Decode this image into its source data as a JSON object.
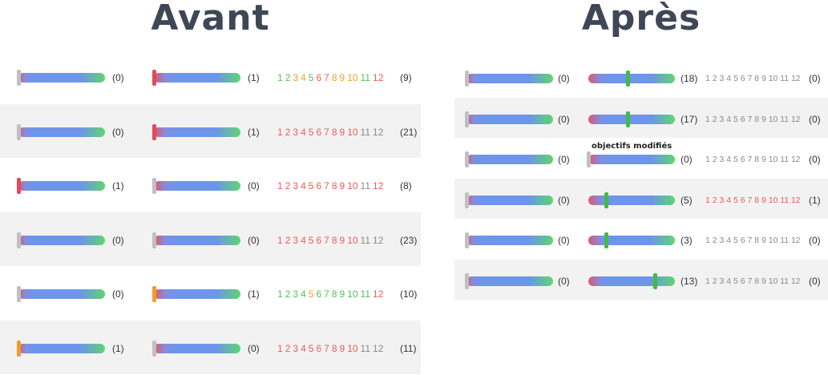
{
  "avant": {
    "title": "Avant",
    "rows": [
      {
        "s1": {
          "count": "(0)",
          "handle": 0.0,
          "handle_color": "gray"
        },
        "s2": {
          "count": "(1)",
          "handle": 0.0,
          "handle_color": "red"
        },
        "goals": [
          {
            "n": "1",
            "c": "green"
          },
          {
            "n": "2",
            "c": "green"
          },
          {
            "n": "3",
            "c": "orange"
          },
          {
            "n": "4",
            "c": "orange"
          },
          {
            "n": "5",
            "c": "green"
          },
          {
            "n": "6",
            "c": "red"
          },
          {
            "n": "7",
            "c": "red"
          },
          {
            "n": "8",
            "c": "orange"
          },
          {
            "n": "9",
            "c": "orange"
          },
          {
            "n": "10",
            "c": "orange"
          },
          {
            "n": "11",
            "c": "green"
          },
          {
            "n": "12",
            "c": "red"
          }
        ],
        "total": "(9)"
      },
      {
        "s1": {
          "count": "(0)",
          "handle": 0.0,
          "handle_color": "gray"
        },
        "s2": {
          "count": "(1)",
          "handle": 0.0,
          "handle_color": "red"
        },
        "goals": [
          {
            "n": "1",
            "c": "red"
          },
          {
            "n": "2",
            "c": "red"
          },
          {
            "n": "3",
            "c": "red"
          },
          {
            "n": "4",
            "c": "red"
          },
          {
            "n": "5",
            "c": "red"
          },
          {
            "n": "6",
            "c": "red"
          },
          {
            "n": "7",
            "c": "red"
          },
          {
            "n": "8",
            "c": "red"
          },
          {
            "n": "9",
            "c": "red"
          },
          {
            "n": "10",
            "c": "red"
          },
          {
            "n": "11",
            "c": "gray"
          },
          {
            "n": "12",
            "c": "gray"
          }
        ],
        "total": "(21)"
      },
      {
        "s1": {
          "count": "(1)",
          "handle": 0.0,
          "handle_color": "red"
        },
        "s2": {
          "count": "(0)",
          "handle": 0.0,
          "handle_color": "gray"
        },
        "goals": [
          {
            "n": "1",
            "c": "red"
          },
          {
            "n": "2",
            "c": "red"
          },
          {
            "n": "3",
            "c": "red"
          },
          {
            "n": "4",
            "c": "red"
          },
          {
            "n": "5",
            "c": "red"
          },
          {
            "n": "6",
            "c": "red"
          },
          {
            "n": "7",
            "c": "red"
          },
          {
            "n": "8",
            "c": "red"
          },
          {
            "n": "9",
            "c": "red"
          },
          {
            "n": "10",
            "c": "red"
          },
          {
            "n": "11",
            "c": "gray"
          },
          {
            "n": "12",
            "c": "red"
          }
        ],
        "total": "(8)"
      },
      {
        "s1": {
          "count": "(0)",
          "handle": 0.0,
          "handle_color": "gray"
        },
        "s2": {
          "count": "(0)",
          "handle": 0.0,
          "handle_color": "gray"
        },
        "goals": [
          {
            "n": "1",
            "c": "red"
          },
          {
            "n": "2",
            "c": "red"
          },
          {
            "n": "3",
            "c": "red"
          },
          {
            "n": "4",
            "c": "red"
          },
          {
            "n": "5",
            "c": "red"
          },
          {
            "n": "6",
            "c": "red"
          },
          {
            "n": "7",
            "c": "red"
          },
          {
            "n": "8",
            "c": "red"
          },
          {
            "n": "9",
            "c": "red"
          },
          {
            "n": "10",
            "c": "red"
          },
          {
            "n": "11",
            "c": "gray"
          },
          {
            "n": "12",
            "c": "gray"
          }
        ],
        "total": "(23)"
      },
      {
        "s1": {
          "count": "(0)",
          "handle": 0.0,
          "handle_color": "gray"
        },
        "s2": {
          "count": "(1)",
          "handle": 0.0,
          "handle_color": "orange"
        },
        "goals": [
          {
            "n": "1",
            "c": "green"
          },
          {
            "n": "2",
            "c": "green"
          },
          {
            "n": "3",
            "c": "green"
          },
          {
            "n": "4",
            "c": "green"
          },
          {
            "n": "5",
            "c": "orange"
          },
          {
            "n": "6",
            "c": "green"
          },
          {
            "n": "7",
            "c": "green"
          },
          {
            "n": "8",
            "c": "green"
          },
          {
            "n": "9",
            "c": "green"
          },
          {
            "n": "10",
            "c": "green"
          },
          {
            "n": "11",
            "c": "green"
          },
          {
            "n": "12",
            "c": "red"
          }
        ],
        "total": "(10)"
      },
      {
        "s1": {
          "count": "(1)",
          "handle": 0.0,
          "handle_color": "orange"
        },
        "s2": {
          "count": "(0)",
          "handle": 0.0,
          "handle_color": "gray"
        },
        "goals": [
          {
            "n": "1",
            "c": "red"
          },
          {
            "n": "2",
            "c": "red"
          },
          {
            "n": "3",
            "c": "red"
          },
          {
            "n": "4",
            "c": "red"
          },
          {
            "n": "5",
            "c": "red"
          },
          {
            "n": "6",
            "c": "red"
          },
          {
            "n": "7",
            "c": "red"
          },
          {
            "n": "8",
            "c": "red"
          },
          {
            "n": "9",
            "c": "red"
          },
          {
            "n": "10",
            "c": "red"
          },
          {
            "n": "11",
            "c": "gray"
          },
          {
            "n": "12",
            "c": "gray"
          }
        ],
        "total": "(11)"
      }
    ]
  },
  "apres": {
    "title": "Après",
    "annotation": "objectifs modifiés",
    "rows": [
      {
        "s1": {
          "count": "(0)",
          "handle": 0.0,
          "handle_color": "gray"
        },
        "s2": {
          "count": "(18)",
          "handle": 0.45,
          "handle_color": "green"
        },
        "goals": [
          {
            "n": "1",
            "c": "gray"
          },
          {
            "n": "2",
            "c": "gray"
          },
          {
            "n": "3",
            "c": "gray"
          },
          {
            "n": "4",
            "c": "gray"
          },
          {
            "n": "5",
            "c": "gray"
          },
          {
            "n": "6",
            "c": "gray"
          },
          {
            "n": "7",
            "c": "gray"
          },
          {
            "n": "8",
            "c": "gray"
          },
          {
            "n": "9",
            "c": "gray"
          },
          {
            "n": "10",
            "c": "gray"
          },
          {
            "n": "11",
            "c": "gray"
          },
          {
            "n": "12",
            "c": "gray"
          }
        ],
        "total": "(0)"
      },
      {
        "s1": {
          "count": "(0)",
          "handle": 0.0,
          "handle_color": "gray"
        },
        "s2": {
          "count": "(17)",
          "handle": 0.45,
          "handle_color": "green"
        },
        "goals": [
          {
            "n": "1",
            "c": "gray"
          },
          {
            "n": "2",
            "c": "gray"
          },
          {
            "n": "3",
            "c": "gray"
          },
          {
            "n": "4",
            "c": "gray"
          },
          {
            "n": "5",
            "c": "gray"
          },
          {
            "n": "6",
            "c": "gray"
          },
          {
            "n": "7",
            "c": "gray"
          },
          {
            "n": "8",
            "c": "gray"
          },
          {
            "n": "9",
            "c": "gray"
          },
          {
            "n": "10",
            "c": "gray"
          },
          {
            "n": "11",
            "c": "gray"
          },
          {
            "n": "12",
            "c": "gray"
          }
        ],
        "total": "(0)"
      },
      {
        "s1": {
          "count": "(0)",
          "handle": 0.0,
          "handle_color": "gray"
        },
        "s2": {
          "count": "(0)",
          "handle": 0.0,
          "handle_color": "gray"
        },
        "goals": [
          {
            "n": "1",
            "c": "gray"
          },
          {
            "n": "2",
            "c": "gray"
          },
          {
            "n": "3",
            "c": "gray"
          },
          {
            "n": "4",
            "c": "gray"
          },
          {
            "n": "5",
            "c": "gray"
          },
          {
            "n": "6",
            "c": "gray"
          },
          {
            "n": "7",
            "c": "gray"
          },
          {
            "n": "8",
            "c": "gray"
          },
          {
            "n": "9",
            "c": "gray"
          },
          {
            "n": "10",
            "c": "gray"
          },
          {
            "n": "11",
            "c": "gray"
          },
          {
            "n": "12",
            "c": "gray"
          }
        ],
        "total": "(0)",
        "annotated": true
      },
      {
        "s1": {
          "count": "(0)",
          "handle": 0.0,
          "handle_color": "gray"
        },
        "s2": {
          "count": "(5)",
          "handle": 0.2,
          "handle_color": "green"
        },
        "goals": [
          {
            "n": "1",
            "c": "red"
          },
          {
            "n": "2",
            "c": "red"
          },
          {
            "n": "3",
            "c": "red"
          },
          {
            "n": "4",
            "c": "red"
          },
          {
            "n": "5",
            "c": "red"
          },
          {
            "n": "6",
            "c": "red"
          },
          {
            "n": "7",
            "c": "red"
          },
          {
            "n": "8",
            "c": "red"
          },
          {
            "n": "9",
            "c": "red"
          },
          {
            "n": "10",
            "c": "red"
          },
          {
            "n": "11",
            "c": "red"
          },
          {
            "n": "12",
            "c": "red"
          }
        ],
        "total": "(1)"
      },
      {
        "s1": {
          "count": "(0)",
          "handle": 0.0,
          "handle_color": "gray"
        },
        "s2": {
          "count": "(3)",
          "handle": 0.2,
          "handle_color": "green"
        },
        "goals": [
          {
            "n": "1",
            "c": "gray"
          },
          {
            "n": "2",
            "c": "gray"
          },
          {
            "n": "3",
            "c": "gray"
          },
          {
            "n": "4",
            "c": "gray"
          },
          {
            "n": "5",
            "c": "gray"
          },
          {
            "n": "6",
            "c": "gray"
          },
          {
            "n": "7",
            "c": "gray"
          },
          {
            "n": "8",
            "c": "gray"
          },
          {
            "n": "9",
            "c": "gray"
          },
          {
            "n": "10",
            "c": "gray"
          },
          {
            "n": "11",
            "c": "gray"
          },
          {
            "n": "12",
            "c": "gray"
          }
        ],
        "total": "(0)"
      },
      {
        "s1": {
          "count": "(0)",
          "handle": 0.0,
          "handle_color": "gray"
        },
        "s2": {
          "count": "(13)",
          "handle": 0.77,
          "handle_color": "green"
        },
        "goals": [
          {
            "n": "1",
            "c": "gray"
          },
          {
            "n": "2",
            "c": "gray"
          },
          {
            "n": "3",
            "c": "gray"
          },
          {
            "n": "4",
            "c": "gray"
          },
          {
            "n": "5",
            "c": "gray"
          },
          {
            "n": "6",
            "c": "gray"
          },
          {
            "n": "7",
            "c": "gray"
          },
          {
            "n": "8",
            "c": "gray"
          },
          {
            "n": "9",
            "c": "gray"
          },
          {
            "n": "10",
            "c": "gray"
          },
          {
            "n": "11",
            "c": "gray"
          },
          {
            "n": "12",
            "c": "gray"
          }
        ],
        "total": "(0)"
      }
    ]
  }
}
